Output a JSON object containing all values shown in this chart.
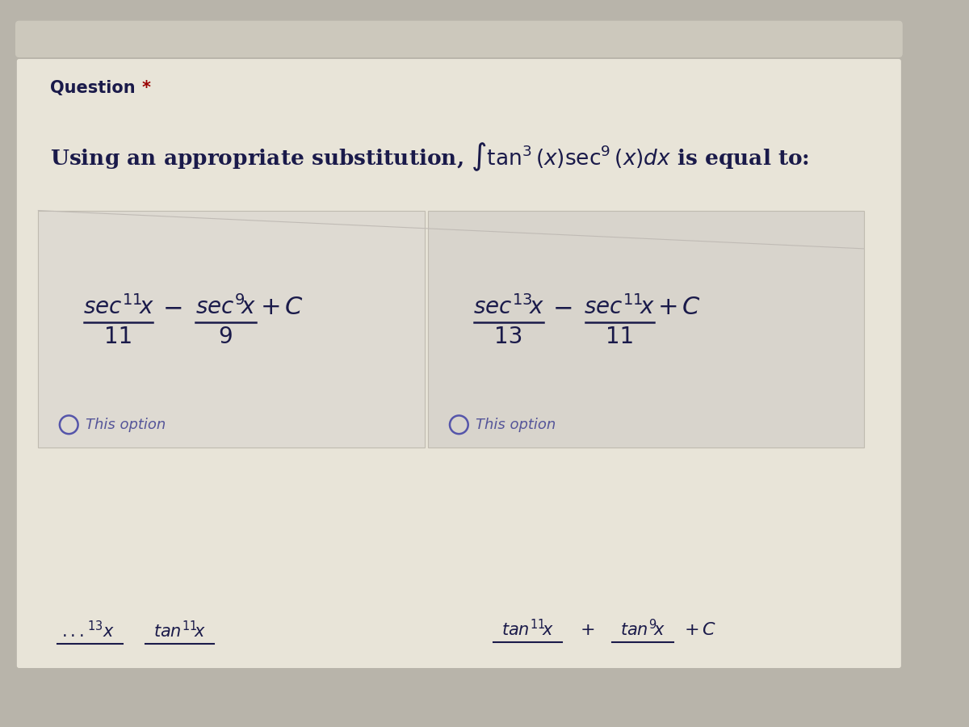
{
  "bg_outer": "#b8b4aa",
  "bg_top_bar": "#ccc8bc",
  "bg_main": "#e8e4d8",
  "bg_option_box_left": "#dedad2",
  "bg_option_box_right": "#d8d4cc",
  "text_color": "#1a1a4a",
  "question_label_color": "#1a1a4a",
  "asterisk_color": "#990000",
  "this_option_text": "This option",
  "divider_color": "#b0aaa0"
}
